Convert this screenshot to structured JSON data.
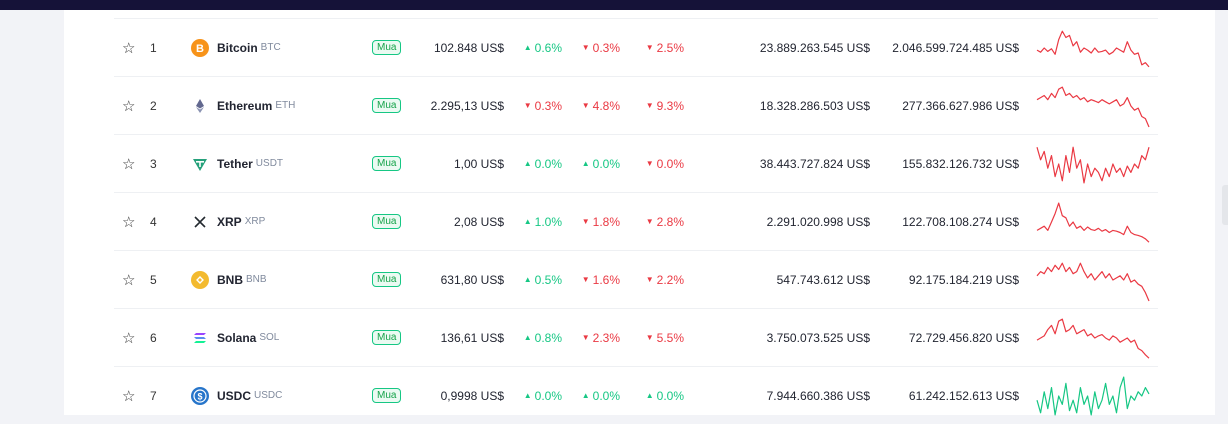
{
  "colors": {
    "up": "#16c784",
    "down": "#ea3943",
    "topbar": "#151238"
  },
  "coins": [
    {
      "rank": "1",
      "name": "Bitcoin",
      "symbol": "BTC",
      "icon": "bitcoin-icon",
      "buy": "Mua",
      "price": "102.848 US$",
      "c1h": "0.6%",
      "c1h_dir": "up",
      "c24h": "0.3%",
      "c24h_dir": "down",
      "c7d": "2.5%",
      "c7d_dir": "down",
      "volume": "23.889.263.545 US$",
      "market_cap": "2.046.599.724.485 US$",
      "spark_trend": "down",
      "spark": [
        0.55,
        0.6,
        0.5,
        0.58,
        0.52,
        0.65,
        0.3,
        0.1,
        0.25,
        0.2,
        0.45,
        0.35,
        0.6,
        0.5,
        0.55,
        0.62,
        0.5,
        0.6,
        0.58,
        0.55,
        0.65,
        0.6,
        0.5,
        0.55,
        0.6,
        0.35,
        0.55,
        0.65,
        0.62,
        0.9,
        0.85,
        0.95
      ]
    },
    {
      "rank": "2",
      "name": "Ethereum",
      "symbol": "ETH",
      "icon": "ethereum-icon",
      "buy": "Mua",
      "price": "2.295,13 US$",
      "c1h": "0.3%",
      "c1h_dir": "down",
      "c24h": "4.8%",
      "c24h_dir": "down",
      "c7d": "9.3%",
      "c7d_dir": "down",
      "volume": "18.328.286.503 US$",
      "market_cap": "277.366.627.986 US$",
      "spark_trend": "down",
      "spark": [
        0.35,
        0.3,
        0.25,
        0.35,
        0.2,
        0.3,
        0.1,
        0.05,
        0.25,
        0.2,
        0.3,
        0.25,
        0.35,
        0.3,
        0.4,
        0.35,
        0.38,
        0.42,
        0.35,
        0.4,
        0.45,
        0.4,
        0.35,
        0.5,
        0.45,
        0.3,
        0.5,
        0.6,
        0.55,
        0.75,
        0.8,
        1.0
      ]
    },
    {
      "rank": "3",
      "name": "Tether",
      "symbol": "USDT",
      "icon": "tether-icon",
      "buy": "Mua",
      "price": "1,00 US$",
      "c1h": "0.0%",
      "c1h_dir": "up",
      "c24h": "0.0%",
      "c24h_dir": "up",
      "c7d": "0.0%",
      "c7d_dir": "down",
      "volume": "38.443.727.824 US$",
      "market_cap": "155.832.126.732 US$",
      "spark_trend": "down",
      "spark": [
        0.1,
        0.4,
        0.2,
        0.6,
        0.3,
        0.8,
        0.5,
        0.9,
        0.3,
        0.7,
        0.1,
        0.6,
        0.4,
        0.95,
        0.5,
        0.8,
        0.6,
        0.7,
        0.9,
        0.6,
        0.8,
        0.5,
        0.7,
        0.6,
        0.8,
        0.55,
        0.7,
        0.5,
        0.6,
        0.3,
        0.4,
        0.1
      ]
    },
    {
      "rank": "4",
      "name": "XRP",
      "symbol": "XRP",
      "icon": "xrp-icon",
      "buy": "Mua",
      "price": "2,08 US$",
      "c1h": "1.0%",
      "c1h_dir": "up",
      "c24h": "1.8%",
      "c24h_dir": "down",
      "c7d": "2.8%",
      "c7d_dir": "down",
      "volume": "2.291.020.998 US$",
      "market_cap": "122.708.108.274 US$",
      "spark_trend": "down",
      "spark": [
        0.7,
        0.65,
        0.6,
        0.7,
        0.5,
        0.3,
        0.05,
        0.35,
        0.4,
        0.6,
        0.5,
        0.65,
        0.6,
        0.7,
        0.62,
        0.68,
        0.7,
        0.65,
        0.72,
        0.68,
        0.75,
        0.7,
        0.72,
        0.75,
        0.8,
        0.6,
        0.75,
        0.8,
        0.82,
        0.85,
        0.9,
        0.98
      ]
    },
    {
      "rank": "5",
      "name": "BNB",
      "symbol": "BNB",
      "icon": "bnb-icon",
      "buy": "Mua",
      "price": "631,80 US$",
      "c1h": "0.5%",
      "c1h_dir": "up",
      "c24h": "1.6%",
      "c24h_dir": "down",
      "c7d": "2.2%",
      "c7d_dir": "down",
      "volume": "547.743.612 US$",
      "market_cap": "92.175.184.219 US$",
      "spark_trend": "down",
      "spark": [
        0.4,
        0.3,
        0.35,
        0.2,
        0.3,
        0.15,
        0.25,
        0.1,
        0.3,
        0.2,
        0.35,
        0.3,
        0.1,
        0.3,
        0.45,
        0.35,
        0.5,
        0.4,
        0.3,
        0.45,
        0.35,
        0.5,
        0.45,
        0.4,
        0.5,
        0.35,
        0.55,
        0.5,
        0.6,
        0.65,
        0.8,
        1.0
      ]
    },
    {
      "rank": "6",
      "name": "Solana",
      "symbol": "SOL",
      "icon": "solana-icon",
      "buy": "Mua",
      "price": "136,61 US$",
      "c1h": "0.8%",
      "c1h_dir": "up",
      "c24h": "2.3%",
      "c24h_dir": "down",
      "c7d": "5.5%",
      "c7d_dir": "down",
      "volume": "3.750.073.525 US$",
      "market_cap": "72.729.456.820 US$",
      "spark_trend": "down",
      "spark": [
        0.55,
        0.5,
        0.45,
        0.3,
        0.2,
        0.4,
        0.1,
        0.05,
        0.35,
        0.3,
        0.2,
        0.4,
        0.35,
        0.3,
        0.45,
        0.4,
        0.5,
        0.45,
        0.42,
        0.5,
        0.55,
        0.45,
        0.5,
        0.6,
        0.55,
        0.5,
        0.6,
        0.55,
        0.75,
        0.8,
        0.9,
        0.98
      ]
    },
    {
      "rank": "7",
      "name": "USDC",
      "symbol": "USDC",
      "icon": "usdc-icon",
      "buy": "Mua",
      "price": "0,9998 US$",
      "c1h": "0.0%",
      "c1h_dir": "up",
      "c24h": "0.0%",
      "c24h_dir": "up",
      "c7d": "0.0%",
      "c7d_dir": "up",
      "volume": "7.944.660.386 US$",
      "market_cap": "61.242.152.613 US$",
      "spark_trend": "up",
      "spark": [
        0.6,
        0.9,
        0.4,
        0.8,
        0.3,
        0.95,
        0.5,
        0.7,
        0.2,
        0.85,
        0.6,
        0.9,
        0.3,
        0.7,
        0.5,
        0.95,
        0.4,
        0.8,
        0.6,
        0.2,
        0.7,
        0.5,
        0.9,
        0.3,
        0.05,
        0.8,
        0.5,
        0.6,
        0.4,
        0.5,
        0.3,
        0.45
      ]
    }
  ]
}
